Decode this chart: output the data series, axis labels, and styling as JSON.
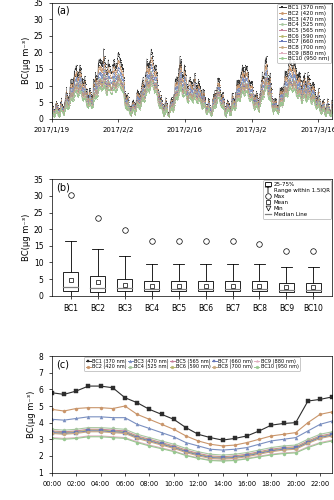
{
  "panel_a": {
    "title": "(a)",
    "ylabel": "BC(μg m⁻³)",
    "ylim": [
      0,
      35
    ],
    "yticks": [
      0,
      5,
      10,
      15,
      20,
      25,
      30,
      35
    ],
    "xticklabels": [
      "2017/1/19",
      "2017/2/2",
      "2017/2/16",
      "2017/3/2",
      "2017/3/16"
    ],
    "legend_labels": [
      "BC1 (370 nm)",
      "BC2 (420 nm)",
      "BC3 (470 nm)",
      "BC4 (525 nm)",
      "BC5 (565 nm)",
      "BC6 (590 nm)",
      "BC7 (660 nm)",
      "BC8 (700 nm)",
      "BC9 (880 nm)",
      "BC10 (950 nm)"
    ]
  },
  "panel_b": {
    "title": "(b)",
    "ylabel": "BC(μg m⁻³)",
    "ylim": [
      0,
      35
    ],
    "yticks": [
      0,
      5,
      10,
      15,
      20,
      25,
      30,
      35
    ],
    "categories": [
      "BC1",
      "BC2",
      "BC3",
      "BC4",
      "BC5",
      "BC6",
      "BC7",
      "BC8",
      "BC9",
      "BC10"
    ],
    "q1": [
      1.5,
      1.2,
      1.5,
      1.5,
      1.5,
      1.4,
      1.4,
      1.4,
      1.2,
      1.2
    ],
    "q3": [
      7.0,
      5.8,
      5.0,
      4.5,
      4.5,
      4.5,
      4.5,
      4.3,
      3.8,
      3.8
    ],
    "median": [
      2.5,
      2.2,
      2.2,
      2.0,
      2.0,
      2.0,
      2.0,
      2.0,
      1.8,
      1.8
    ],
    "mean": [
      4.7,
      4.0,
      3.3,
      3.0,
      3.0,
      3.0,
      3.0,
      3.0,
      2.6,
      2.5
    ],
    "whislo": [
      0.0,
      0.0,
      0.0,
      0.0,
      0.0,
      0.0,
      0.0,
      0.0,
      0.0,
      0.0
    ],
    "whishi": [
      16.5,
      14.0,
      12.0,
      9.5,
      9.5,
      9.5,
      9.5,
      9.5,
      8.5,
      8.5
    ],
    "fliers_max": [
      30.3,
      23.3,
      19.7,
      16.3,
      16.3,
      16.3,
      16.5,
      15.5,
      13.5,
      13.5
    ]
  },
  "panel_c": {
    "title": "(c)",
    "ylabel": "BC(μg m⁻³)",
    "ylim": [
      1,
      8
    ],
    "yticks": [
      1,
      2,
      3,
      4,
      5,
      6,
      7,
      8
    ],
    "hours": [
      0,
      1,
      2,
      3,
      4,
      5,
      6,
      7,
      8,
      9,
      10,
      11,
      12,
      13,
      14,
      15,
      16,
      17,
      18,
      19,
      20,
      21,
      22,
      23
    ],
    "xticklabels": [
      "00:00",
      "02:00",
      "04:00",
      "06:00",
      "08:00",
      "10:00",
      "12:00",
      "14:00",
      "16:00",
      "18:00",
      "20:00",
      "22:00"
    ],
    "legend_labels": [
      "BC1 (370 nm)",
      "BC2 (420 nm)",
      "BC3 (470 nm)",
      "BC4 (525 nm)",
      "BC5 (565 nm)",
      "BC6 (590 nm)",
      "BC7 (660 nm)",
      "BC8 (700 nm)",
      "BC9 (880 nm)",
      "BC10 (950 nm)"
    ],
    "bc1": [
      5.8,
      5.7,
      5.9,
      6.2,
      6.2,
      6.1,
      5.5,
      5.2,
      4.8,
      4.5,
      4.2,
      3.7,
      3.3,
      3.1,
      2.95,
      3.05,
      3.2,
      3.5,
      3.85,
      3.95,
      4.0,
      5.3,
      5.4,
      5.55
    ],
    "bc2": [
      4.8,
      4.7,
      4.85,
      4.9,
      4.9,
      4.85,
      5.0,
      4.5,
      4.2,
      3.9,
      3.6,
      3.2,
      2.9,
      2.7,
      2.6,
      2.65,
      2.8,
      3.0,
      3.2,
      3.3,
      3.4,
      4.0,
      4.5,
      4.65
    ],
    "bc3": [
      4.2,
      4.15,
      4.25,
      4.35,
      4.35,
      4.3,
      4.3,
      3.9,
      3.65,
      3.4,
      3.15,
      2.8,
      2.6,
      2.4,
      2.35,
      2.4,
      2.5,
      2.7,
      2.9,
      3.0,
      3.1,
      3.5,
      3.9,
      4.1
    ],
    "bc4": [
      3.6,
      3.55,
      3.6,
      3.7,
      3.7,
      3.65,
      3.6,
      3.3,
      3.1,
      2.9,
      2.7,
      2.45,
      2.25,
      2.1,
      2.05,
      2.1,
      2.2,
      2.35,
      2.5,
      2.6,
      2.65,
      3.0,
      3.3,
      3.45
    ],
    "bc5": [
      3.5,
      3.45,
      3.5,
      3.6,
      3.6,
      3.55,
      3.5,
      3.2,
      3.0,
      2.8,
      2.6,
      2.35,
      2.15,
      2.0,
      1.95,
      2.0,
      2.1,
      2.25,
      2.4,
      2.5,
      2.55,
      2.9,
      3.2,
      3.35
    ],
    "bc6": [
      3.45,
      3.4,
      3.45,
      3.55,
      3.55,
      3.5,
      3.45,
      3.15,
      2.95,
      2.75,
      2.55,
      2.3,
      2.1,
      1.95,
      1.9,
      1.95,
      2.05,
      2.2,
      2.35,
      2.45,
      2.5,
      2.85,
      3.15,
      3.3
    ],
    "bc7": [
      3.4,
      3.35,
      3.4,
      3.5,
      3.5,
      3.45,
      3.4,
      3.1,
      2.9,
      2.7,
      2.5,
      2.25,
      2.05,
      1.9,
      1.85,
      1.9,
      2.0,
      2.15,
      2.3,
      2.4,
      2.45,
      2.8,
      3.1,
      3.25
    ],
    "bc8": [
      3.35,
      3.3,
      3.35,
      3.45,
      3.45,
      3.4,
      3.35,
      3.05,
      2.85,
      2.65,
      2.45,
      2.2,
      2.0,
      1.85,
      1.8,
      1.85,
      1.95,
      2.1,
      2.25,
      2.35,
      2.4,
      2.75,
      3.05,
      3.2
    ],
    "bc9": [
      3.1,
      3.05,
      3.1,
      3.2,
      3.2,
      3.15,
      3.1,
      2.85,
      2.65,
      2.48,
      2.3,
      2.05,
      1.88,
      1.75,
      1.72,
      1.75,
      1.85,
      1.98,
      2.1,
      2.18,
      2.22,
      2.55,
      2.8,
      2.95
    ],
    "bc10": [
      3.05,
      3.0,
      3.05,
      3.15,
      3.15,
      3.1,
      3.05,
      2.8,
      2.6,
      2.43,
      2.26,
      2.02,
      1.85,
      1.72,
      1.69,
      1.72,
      1.82,
      1.94,
      2.06,
      2.14,
      2.18,
      2.5,
      2.75,
      2.9
    ]
  },
  "colors": {
    "BC1": "#2d2d2d",
    "BC2": "#c9956a",
    "BC3": "#7a8fc0",
    "BC4": "#a8c8a0",
    "BC5": "#c8829a",
    "BC6": "#b8b870",
    "BC7": "#6878b8",
    "BC8": "#c8a880",
    "BC9": "#e0b0c0",
    "BC10": "#98c890"
  },
  "markers_a": {
    "BC1": "s",
    "BC2": "o",
    "BC3": "s",
    "BC4": "o",
    "BC5": "s",
    "BC6": "o",
    "BC7": "s",
    "BC8": "o",
    "BC9": "s",
    "BC10": "o"
  },
  "markers_c": {
    "BC1": "s",
    "BC2": "o",
    "BC3": "^",
    "BC4": "o",
    "BC5": "*",
    "BC6": "o",
    "BC7": "s",
    "BC8": "o",
    "BC9": "*",
    "BC10": "o"
  }
}
